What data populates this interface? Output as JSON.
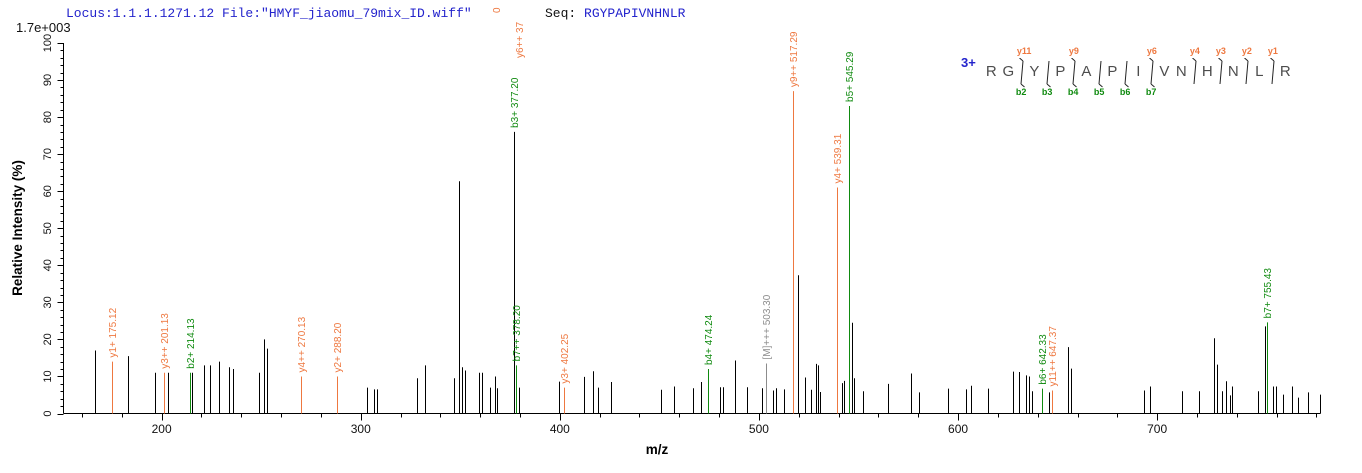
{
  "header": {
    "locus": "Locus:1.1.1.1271.12 File:\"HMYF_jiaomu_79mix_ID.wiff\"",
    "seq_label": "Seq: ",
    "seq_value": "RGYPAPIVNHNLR",
    "max_intensity": "1.7e+003"
  },
  "colors": {
    "y_ion": "#ee7840",
    "b_ion": "#0f8a0f",
    "precursor": "#8c8c8c",
    "peak": "#000000",
    "axis": "#000000",
    "header_blue": "#2323cc"
  },
  "chart_data": {
    "type": "bar",
    "subtype": "ms2-spectrum",
    "xlabel": "m/z",
    "ylabel": "Relative Intensity (%)",
    "x_major_ticks": [
      200,
      300,
      400,
      500,
      600,
      700
    ],
    "x_minor_step": 20,
    "x_range": [
      150.7,
      782
    ],
    "y_major_ticks": [
      0,
      10,
      20,
      30,
      40,
      50,
      60,
      70,
      80,
      90,
      100
    ],
    "y_minor_step": 2,
    "y_range": [
      0,
      100
    ],
    "labeled_peaks": [
      {
        "mz": 175.12,
        "pct": 14,
        "ion": "y",
        "label": "y1+ 175.12"
      },
      {
        "mz": 201.13,
        "pct": 11,
        "ion": "y",
        "label": "y3++ 201.13"
      },
      {
        "mz": 214.13,
        "pct": 11,
        "ion": "b",
        "label": "b2+ 214.13"
      },
      {
        "mz": 270.13,
        "pct": 10,
        "ion": "y",
        "label": "y4++ 270.13"
      },
      {
        "mz": 288.2,
        "pct": 10,
        "ion": "y",
        "label": "y2+ 288.20"
      },
      {
        "mz": 377.2,
        "pct": 76,
        "ion": "b",
        "label": "b3+ 377.20",
        "line_color_override": "#000000"
      },
      {
        "mz": 378.2,
        "pct": 13,
        "ion": "b",
        "label": "b7++ 378.20"
      },
      {
        "mz": 402.25,
        "pct": 7,
        "ion": "y",
        "label": "y3+ 402.25"
      },
      {
        "mz": 474.24,
        "pct": 12,
        "ion": "b",
        "label": "b4+ 474.24"
      },
      {
        "mz": 503.3,
        "pct": 13.5,
        "ion": "M",
        "label": "[M]+++ 503.30"
      },
      {
        "mz": 517.29,
        "pct": 87,
        "ion": "y",
        "label": "y9++ 517.29"
      },
      {
        "mz": 539.31,
        "pct": 61,
        "ion": "y",
        "label": "y4+ 539.31"
      },
      {
        "mz": 545.29,
        "pct": 83,
        "ion": "b",
        "label": "b5+ 545.29"
      },
      {
        "mz": 642.33,
        "pct": 6.7,
        "ion": "b",
        "label": "b6+ 642.33"
      },
      {
        "mz": 647.37,
        "pct": 6.2,
        "ion": "y",
        "label": "y11++ 647.37"
      },
      {
        "mz": 755.43,
        "pct": 24.6,
        "ion": "b",
        "label": "b7+ 755.43"
      }
    ],
    "clipped_labels": [
      {
        "text": "0",
        "x": 497,
        "y": 13,
        "ion": "y"
      },
      {
        "text": "y6++ 37",
        "x": 520,
        "y": 58,
        "ion": "y"
      }
    ],
    "unlabeled_peaks": [
      [
        166.4,
        17
      ],
      [
        183,
        15.5
      ],
      [
        196.5,
        11
      ],
      [
        203,
        11
      ],
      [
        215.1,
        11
      ],
      [
        221.1,
        13
      ],
      [
        224.1,
        13
      ],
      [
        228.6,
        14
      ],
      [
        233.7,
        12.5
      ],
      [
        235.7,
        12
      ],
      [
        248.7,
        11
      ],
      [
        251.3,
        20
      ],
      [
        252.8,
        17.5
      ],
      [
        303,
        7
      ],
      [
        306.5,
        6.5
      ],
      [
        308,
        6.5
      ],
      [
        328.1,
        9.5
      ],
      [
        332.2,
        13
      ],
      [
        346.7,
        9.5
      ],
      [
        349.2,
        62.7
      ],
      [
        350.8,
        12.5
      ],
      [
        352.3,
        11.6
      ],
      [
        359.3,
        11
      ],
      [
        360.8,
        11
      ],
      [
        364.8,
        7
      ],
      [
        367.3,
        10
      ],
      [
        368.3,
        6.8
      ],
      [
        379.4,
        7
      ],
      [
        399.5,
        8.6
      ],
      [
        412.1,
        9.9
      ],
      [
        416.6,
        11.4
      ],
      [
        419.1,
        7
      ],
      [
        425.6,
        8.5
      ],
      [
        450.8,
        6.4
      ],
      [
        457.3,
        7.3
      ],
      [
        466.8,
        6.8
      ],
      [
        470.9,
        8.5
      ],
      [
        480.4,
        7.1
      ],
      [
        481.9,
        7.1
      ],
      [
        487.9,
        14.3
      ],
      [
        494,
        7.1
      ],
      [
        501.5,
        6.8
      ],
      [
        507,
        6.2
      ],
      [
        508.5,
        6.8
      ],
      [
        512.6,
        6.5
      ],
      [
        519.7,
        37.3
      ],
      [
        523.2,
        9.7
      ],
      [
        526.2,
        6.4
      ],
      [
        528.7,
        13.4
      ],
      [
        529.7,
        13
      ],
      [
        530.5,
        5.8
      ],
      [
        541.8,
        8.2
      ],
      [
        542.8,
        8.8
      ],
      [
        546.8,
        24.5
      ],
      [
        547.8,
        9.5
      ],
      [
        552.4,
        6
      ],
      [
        564.9,
        8
      ],
      [
        576.5,
        10.8
      ],
      [
        580.5,
        5.7
      ],
      [
        595.1,
        6.7
      ],
      [
        604.1,
        6.5
      ],
      [
        606.6,
        7.5
      ],
      [
        615.2,
        6.7
      ],
      [
        627.7,
        11.3
      ],
      [
        630.7,
        11.2
      ],
      [
        634.2,
        10.3
      ],
      [
        635.8,
        10
      ],
      [
        637.3,
        6
      ],
      [
        645.8,
        5.7
      ],
      [
        655.4,
        17.9
      ],
      [
        656.9,
        12.1
      ],
      [
        693.6,
        6.2
      ],
      [
        696.6,
        7.3
      ],
      [
        712.6,
        6
      ],
      [
        721.2,
        6
      ],
      [
        728.7,
        20.3
      ],
      [
        730.2,
        13.2
      ],
      [
        732.7,
        6
      ],
      [
        734.7,
        8.7
      ],
      [
        736.7,
        4.9
      ],
      [
        737.7,
        7.3
      ],
      [
        750.8,
        6
      ],
      [
        754.3,
        23.5
      ],
      [
        758.3,
        7.3
      ],
      [
        759.8,
        7.3
      ],
      [
        763.3,
        5.1
      ],
      [
        767.9,
        7.3
      ],
      [
        770.9,
        4.3
      ],
      [
        775.9,
        5.7
      ],
      [
        782,
        5.1
      ]
    ]
  },
  "peptide": {
    "charge": "3+",
    "residues": [
      "R",
      "G",
      "Y",
      "P",
      "A",
      "P",
      "I",
      "V",
      "N",
      "H",
      "N",
      "L",
      "R"
    ],
    "dividers": [
      {
        "after": 1,
        "y": "y11",
        "b": "b2"
      },
      {
        "after": 2,
        "y": "",
        "b": "b3"
      },
      {
        "after": 3,
        "y": "y9",
        "b": "b4"
      },
      {
        "after": 4,
        "y": "",
        "b": "b5"
      },
      {
        "after": 5,
        "y": "",
        "b": "b6"
      },
      {
        "after": 6,
        "y": "y6",
        "b": "b7"
      },
      {
        "after": 8,
        "y": "y4",
        "b": ""
      },
      {
        "after": 9,
        "y": "y3",
        "b": ""
      },
      {
        "after": 10,
        "y": "y2",
        "b": ""
      },
      {
        "after": 11,
        "y": "y1",
        "b": ""
      }
    ]
  }
}
